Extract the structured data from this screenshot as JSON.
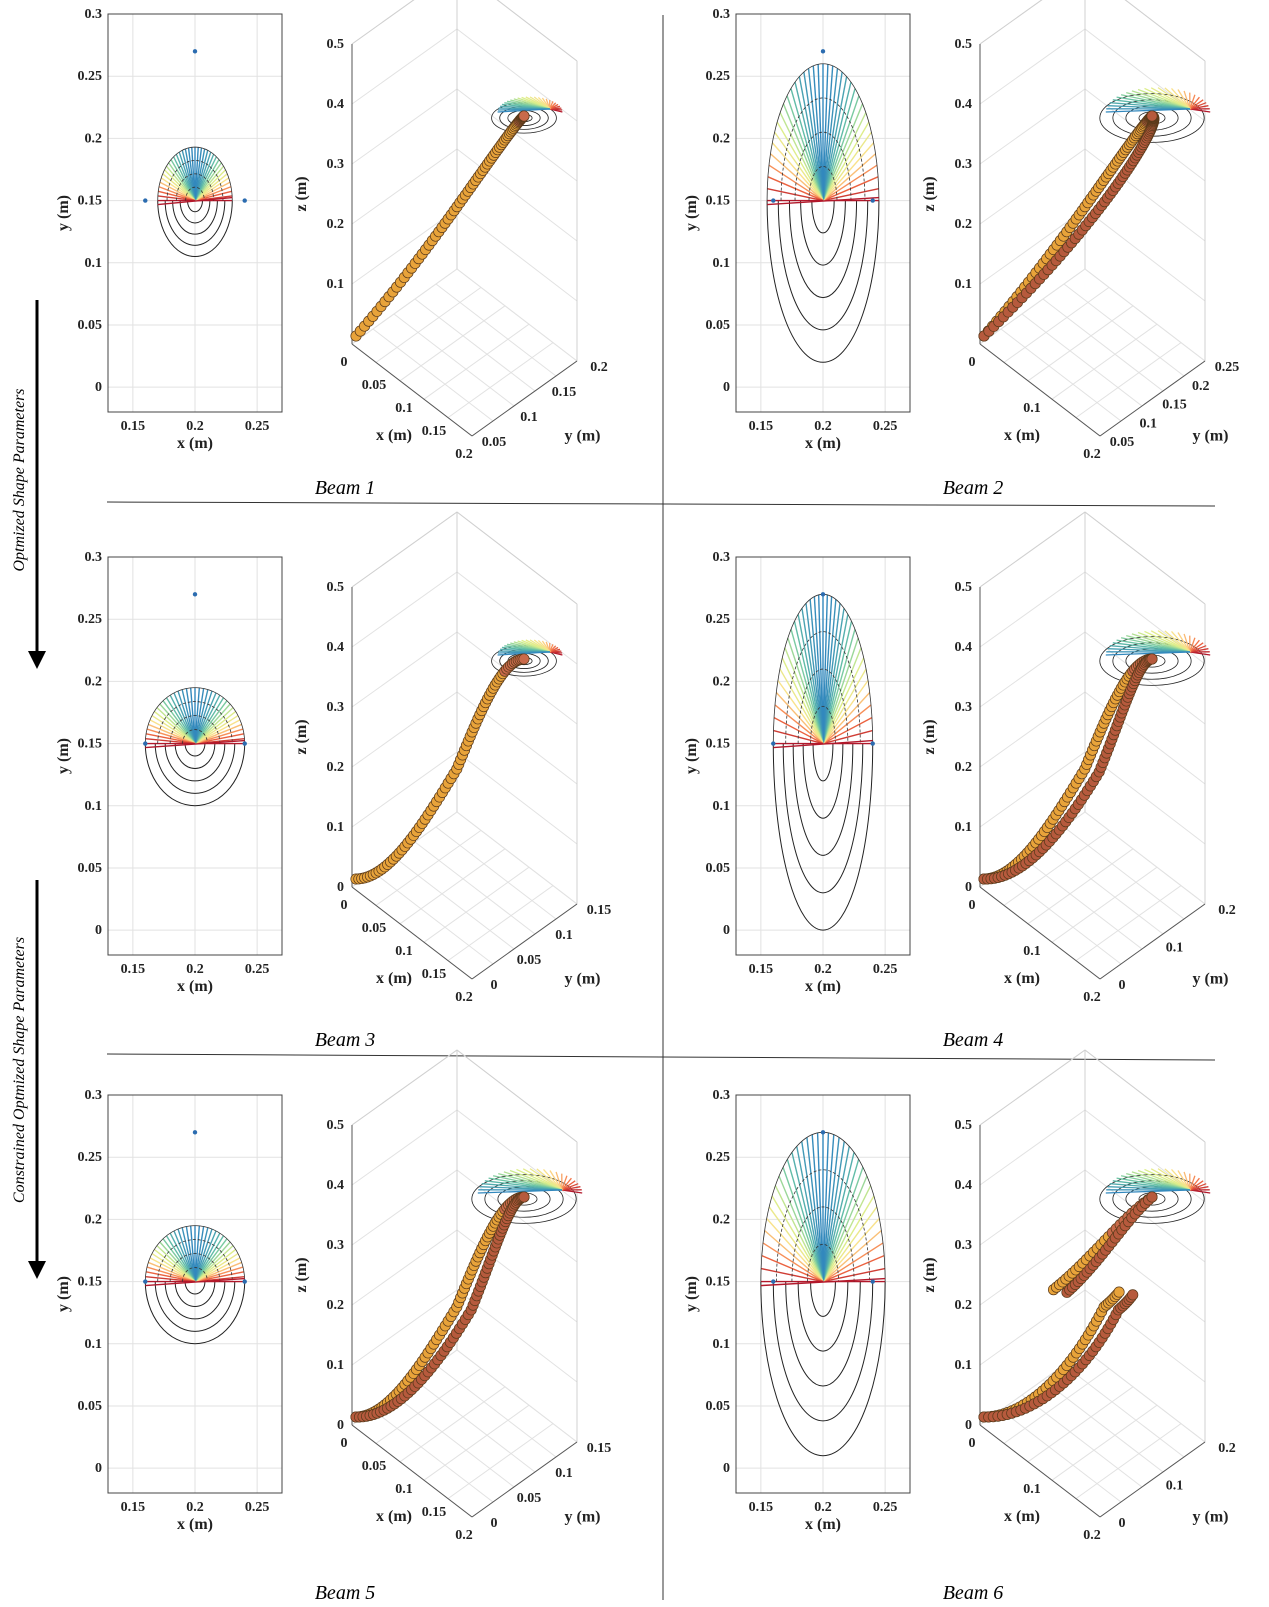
{
  "figure": {
    "side_labels": [
      "Optmized Shape Parameters",
      "Constrained Optmized Shape Parameters"
    ],
    "beam_labels": [
      "Beam 1",
      "Beam 2",
      "Beam 3",
      "Beam 4",
      "Beam 5",
      "Beam 6"
    ]
  },
  "chart_data": [
    {
      "type": "contour",
      "panel": "Beam 1 (2D)",
      "xlabel": "x (m)",
      "ylabel": "y (m)",
      "xlim": [
        0.13,
        0.27
      ],
      "ylim": [
        -0.02,
        0.3
      ],
      "xticks": [
        "0.15",
        "0.2",
        "0.25"
      ],
      "yticks": [
        "0",
        "0.05",
        "0.1",
        "0.15",
        "0.2",
        "0.25",
        "0.3"
      ],
      "points": [
        {
          "x": 0.2,
          "y": 0.27
        },
        {
          "x": 0.16,
          "y": 0.15
        },
        {
          "x": 0.24,
          "y": 0.15
        }
      ],
      "shape": {
        "rx": 0.03,
        "ry_top": 0.043,
        "ry_bottom": 0.045
      },
      "grid": true
    },
    {
      "type": "3d-line",
      "panel": "Beam 1 (3D)",
      "xlabel": "x (m)",
      "ylabel": "y (m)",
      "zlabel": "z (m)",
      "xticks": [
        "0",
        "0.05",
        "0.1",
        "0.15",
        "0.2"
      ],
      "yticks": [
        "0.05",
        "0.1",
        "0.15",
        "0.2"
      ],
      "zticks": [
        "0.1",
        "0.2",
        "0.3",
        "0.4",
        "0.5"
      ],
      "strands": 1,
      "profile": "concave",
      "grid": true
    },
    {
      "type": "contour",
      "panel": "Beam 2 (2D)",
      "xlabel": "x (m)",
      "ylabel": "y (m)",
      "xlim": [
        0.13,
        0.27
      ],
      "ylim": [
        -0.02,
        0.3
      ],
      "xticks": [
        "0.15",
        "0.2",
        "0.25"
      ],
      "yticks": [
        "0",
        "0.05",
        "0.1",
        "0.15",
        "0.2",
        "0.25",
        "0.3"
      ],
      "points": [
        {
          "x": 0.2,
          "y": 0.27
        },
        {
          "x": 0.16,
          "y": 0.15
        },
        {
          "x": 0.24,
          "y": 0.15
        }
      ],
      "shape": {
        "rx": 0.045,
        "ry_top": 0.11,
        "ry_bottom": 0.13
      },
      "grid": true
    },
    {
      "type": "3d-line",
      "panel": "Beam 2 (3D)",
      "xlabel": "x (m)",
      "ylabel": "y (m)",
      "zlabel": "z (m)",
      "xticks": [
        "0",
        "0.1",
        "0.2"
      ],
      "yticks": [
        "0.05",
        "0.1",
        "0.15",
        "0.2",
        "0.25"
      ],
      "zticks": [
        "0.1",
        "0.2",
        "0.3",
        "0.4",
        "0.5"
      ],
      "strands": 2,
      "profile": "concave",
      "grid": true
    },
    {
      "type": "contour",
      "panel": "Beam 3 (2D)",
      "xlabel": "x (m)",
      "ylabel": "y (m)",
      "xlim": [
        0.13,
        0.27
      ],
      "ylim": [
        -0.02,
        0.3
      ],
      "xticks": [
        "0.15",
        "0.2",
        "0.25"
      ],
      "yticks": [
        "0",
        "0.05",
        "0.1",
        "0.15",
        "0.2",
        "0.25",
        "0.3"
      ],
      "points": [
        {
          "x": 0.2,
          "y": 0.27
        },
        {
          "x": 0.16,
          "y": 0.15
        },
        {
          "x": 0.24,
          "y": 0.15
        }
      ],
      "shape": {
        "rx": 0.04,
        "ry_top": 0.045,
        "ry_bottom": 0.05
      },
      "grid": true
    },
    {
      "type": "3d-line",
      "panel": "Beam 3 (3D)",
      "xlabel": "x (m)",
      "ylabel": "y (m)",
      "zlabel": "z (m)",
      "xticks": [
        "0",
        "0.05",
        "0.1",
        "0.15",
        "0.2"
      ],
      "yticks": [
        "0",
        "0.05",
        "0.1",
        "0.15"
      ],
      "zticks": [
        "0",
        "0.1",
        "0.2",
        "0.3",
        "0.4",
        "0.5"
      ],
      "strands": 1,
      "profile": "s-curve",
      "grid": true
    },
    {
      "type": "contour",
      "panel": "Beam 4 (2D)",
      "xlabel": "x (m)",
      "ylabel": "y (m)",
      "xlim": [
        0.13,
        0.27
      ],
      "ylim": [
        -0.02,
        0.3
      ],
      "xticks": [
        "0.15",
        "0.2",
        "0.25"
      ],
      "yticks": [
        "0",
        "0.05",
        "0.1",
        "0.15",
        "0.2",
        "0.25",
        "0.3"
      ],
      "points": [
        {
          "x": 0.2,
          "y": 0.27
        },
        {
          "x": 0.16,
          "y": 0.15
        },
        {
          "x": 0.24,
          "y": 0.15
        }
      ],
      "shape": {
        "rx": 0.04,
        "ry_top": 0.12,
        "ry_bottom": 0.15
      },
      "grid": true
    },
    {
      "type": "3d-line",
      "panel": "Beam 4 (3D)",
      "xlabel": "x (m)",
      "ylabel": "y (m)",
      "zlabel": "z (m)",
      "xticks": [
        "0",
        "0.1",
        "0.2"
      ],
      "yticks": [
        "0",
        "0.1",
        "0.2"
      ],
      "zticks": [
        "0",
        "0.1",
        "0.2",
        "0.3",
        "0.4",
        "0.5"
      ],
      "strands": 2,
      "profile": "s-curve",
      "grid": true
    },
    {
      "type": "contour",
      "panel": "Beam 5 (2D)",
      "xlabel": "x (m)",
      "ylabel": "y (m)",
      "xlim": [
        0.13,
        0.27
      ],
      "ylim": [
        -0.02,
        0.3
      ],
      "xticks": [
        "0.15",
        "0.2",
        "0.25"
      ],
      "yticks": [
        "0",
        "0.05",
        "0.1",
        "0.15",
        "0.2",
        "0.25",
        "0.3"
      ],
      "points": [
        {
          "x": 0.2,
          "y": 0.27
        },
        {
          "x": 0.16,
          "y": 0.15
        },
        {
          "x": 0.24,
          "y": 0.15
        }
      ],
      "shape": {
        "rx": 0.04,
        "ry_top": 0.045,
        "ry_bottom": 0.05
      },
      "grid": true
    },
    {
      "type": "3d-line",
      "panel": "Beam 5 (3D)",
      "xlabel": "x (m)",
      "ylabel": "y (m)",
      "zlabel": "z (m)",
      "xticks": [
        "0",
        "0.05",
        "0.1",
        "0.15",
        "0.2"
      ],
      "yticks": [
        "0",
        "0.05",
        "0.1",
        "0.15"
      ],
      "zticks": [
        "0",
        "0.1",
        "0.2",
        "0.3",
        "0.4",
        "0.5"
      ],
      "strands": 2,
      "profile": "s-curve",
      "grid": true
    },
    {
      "type": "contour",
      "panel": "Beam 6 (2D)",
      "xlabel": "x (m)",
      "ylabel": "y (m)",
      "xlim": [
        0.13,
        0.27
      ],
      "ylim": [
        -0.02,
        0.3
      ],
      "xticks": [
        "0.15",
        "0.2",
        "0.25"
      ],
      "yticks": [
        "0",
        "0.05",
        "0.1",
        "0.15",
        "0.2",
        "0.25",
        "0.3"
      ],
      "points": [
        {
          "x": 0.2,
          "y": 0.27
        },
        {
          "x": 0.16,
          "y": 0.15
        },
        {
          "x": 0.24,
          "y": 0.15
        }
      ],
      "shape": {
        "rx": 0.05,
        "ry_top": 0.12,
        "ry_bottom": 0.14
      },
      "grid": true
    },
    {
      "type": "3d-line",
      "panel": "Beam 6 (3D)",
      "xlabel": "x (m)",
      "ylabel": "y (m)",
      "zlabel": "z (m)",
      "xticks": [
        "0",
        "0.1",
        "0.2"
      ],
      "yticks": [
        "0",
        "0.1",
        "0.2"
      ],
      "zticks": [
        "0",
        "0.1",
        "0.2",
        "0.3",
        "0.4",
        "0.5"
      ],
      "strands": 2,
      "profile": "loop",
      "grid": true
    }
  ]
}
